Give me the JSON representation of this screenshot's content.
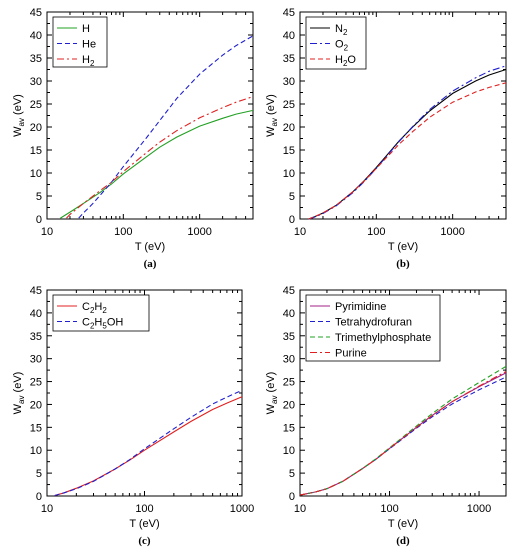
{
  "chart_data": [
    {
      "type": "line",
      "panel": "(a)",
      "xlabel": "T (eV)",
      "ylabel_main": "W",
      "ylabel_sub": "av",
      "ylabel_unit": " (eV)",
      "xscale": "log",
      "xlim": [
        10,
        5000
      ],
      "ylim": [
        0,
        45
      ],
      "xticks": [
        10,
        100,
        1000
      ],
      "yticks": [
        0,
        5,
        10,
        15,
        20,
        25,
        30,
        35,
        40,
        45
      ],
      "grid": false,
      "legend": "top-left",
      "series": [
        {
          "name_parts": [
            [
              "H",
              ""
            ]
          ],
          "color": "#22a022",
          "dash": "solid",
          "x": [
            15,
            20,
            30,
            50,
            70,
            100,
            200,
            300,
            500,
            1000,
            2000,
            3000,
            5000
          ],
          "y": [
            0.2,
            1.5,
            3.4,
            5.8,
            7.6,
            9.8,
            13.5,
            15.6,
            17.8,
            20.2,
            21.9,
            22.8,
            23.6
          ]
        },
        {
          "name_parts": [
            [
              "He",
              ""
            ]
          ],
          "color": "#2020d0",
          "dash": "dash",
          "x": [
            26,
            30,
            40,
            50,
            70,
            100,
            200,
            300,
            500,
            1000,
            2000,
            3000,
            5000
          ],
          "y": [
            0.2,
            1.3,
            3.4,
            5.2,
            8.0,
            11.4,
            17.6,
            21.4,
            26.2,
            31.5,
            35.6,
            37.7,
            39.8
          ]
        },
        {
          "name_parts": [
            [
              "H",
              ""
            ],
            [
              "2",
              "sub"
            ]
          ],
          "color": "#e02020",
          "dash": "dashdot",
          "x": [
            18,
            20,
            30,
            50,
            70,
            100,
            200,
            300,
            500,
            1000,
            2000,
            3000,
            5000
          ],
          "y": [
            0.2,
            1.0,
            3.4,
            6.2,
            8.0,
            10.3,
            14.4,
            16.7,
            19.2,
            22.0,
            24.2,
            25.4,
            26.6
          ]
        }
      ]
    },
    {
      "type": "line",
      "panel": "(b)",
      "xlabel": "T (eV)",
      "ylabel_main": "W",
      "ylabel_sub": "av",
      "ylabel_unit": " (eV)",
      "xscale": "log",
      "xlim": [
        10,
        5000
      ],
      "ylim": [
        0,
        45
      ],
      "xticks": [
        10,
        100,
        1000
      ],
      "yticks": [
        0,
        5,
        10,
        15,
        20,
        25,
        30,
        35,
        40,
        45
      ],
      "grid": false,
      "legend": "top-left",
      "series": [
        {
          "name_parts": [
            [
              "N",
              ""
            ],
            [
              "2",
              "sub"
            ]
          ],
          "color": "#000000",
          "dash": "solid",
          "x": [
            13,
            15,
            20,
            30,
            50,
            70,
            100,
            200,
            300,
            500,
            1000,
            2000,
            3000,
            5000
          ],
          "y": [
            0,
            0.4,
            1.3,
            3.0,
            6.0,
            8.4,
            11.2,
            17.0,
            20.0,
            23.5,
            27.3,
            30.0,
            31.3,
            32.5
          ]
        },
        {
          "name_parts": [
            [
              "O",
              ""
            ],
            [
              "2",
              "sub"
            ]
          ],
          "color": "#2020d0",
          "dash": "dashdot",
          "x": [
            13,
            15,
            20,
            30,
            50,
            70,
            100,
            200,
            300,
            500,
            1000,
            2000,
            3000,
            5000
          ],
          "y": [
            0,
            0.3,
            1.2,
            2.9,
            5.8,
            8.2,
            11.0,
            16.9,
            20.1,
            23.8,
            27.8,
            30.7,
            32.1,
            33.3
          ]
        },
        {
          "name_parts": [
            [
              "H",
              ""
            ],
            [
              "2",
              "sub"
            ],
            [
              "O",
              ""
            ]
          ],
          "color": "#e02020",
          "dash": "dash",
          "x": [
            13,
            15,
            20,
            30,
            50,
            70,
            100,
            200,
            300,
            500,
            1000,
            2000,
            3000,
            5000
          ],
          "y": [
            0,
            0.4,
            1.3,
            3.0,
            6.0,
            8.3,
            11.0,
            16.3,
            19.0,
            22.1,
            25.4,
            27.6,
            28.6,
            29.6
          ]
        }
      ]
    },
    {
      "type": "line",
      "panel": "(c)",
      "xlabel": "T (eV)",
      "ylabel_main": "W",
      "ylabel_sub": "av",
      "ylabel_unit": " (eV)",
      "xscale": "log",
      "xlim": [
        10,
        1000
      ],
      "ylim": [
        0,
        45
      ],
      "xticks": [
        10,
        100,
        1000
      ],
      "yticks": [
        0,
        5,
        10,
        15,
        20,
        25,
        30,
        35,
        40,
        45
      ],
      "grid": false,
      "legend": "top-left",
      "series": [
        {
          "name_parts": [
            [
              "C",
              ""
            ],
            [
              "2",
              "sub"
            ],
            [
              "H",
              ""
            ],
            [
              "2",
              "sub"
            ]
          ],
          "color": "#e02020",
          "dash": "solid",
          "x": [
            12,
            15,
            20,
            30,
            50,
            70,
            100,
            200,
            300,
            500,
            700,
            1000
          ],
          "y": [
            0.1,
            0.7,
            1.7,
            3.3,
            5.9,
            7.8,
            10.0,
            14.0,
            16.3,
            18.9,
            20.3,
            21.7
          ]
        },
        {
          "name_parts": [
            [
              "C",
              ""
            ],
            [
              "2",
              "sub"
            ],
            [
              "H",
              ""
            ],
            [
              "5",
              "sub"
            ],
            [
              "OH",
              ""
            ]
          ],
          "color": "#2020d0",
          "dash": "dash",
          "x": [
            12,
            15,
            20,
            30,
            50,
            70,
            100,
            200,
            300,
            500,
            700,
            1000
          ],
          "y": [
            0.1,
            0.7,
            1.6,
            3.2,
            5.9,
            7.9,
            10.3,
            14.7,
            17.2,
            20.1,
            21.6,
            23.1
          ]
        }
      ]
    },
    {
      "type": "line",
      "panel": "(d)",
      "xlabel": "T (eV)",
      "ylabel_main": "W",
      "ylabel_sub": "av",
      "ylabel_unit": " (eV)",
      "xscale": "log",
      "xlim": [
        10,
        2000
      ],
      "ylim": [
        0,
        45
      ],
      "xticks": [
        10,
        100,
        1000
      ],
      "yticks": [
        0,
        5,
        10,
        15,
        20,
        25,
        30,
        35,
        40,
        45
      ],
      "grid": false,
      "legend": "top-left",
      "series": [
        {
          "name_parts": [
            [
              "Pyrimidine",
              ""
            ]
          ],
          "color": "#a0208a",
          "dash": "solid",
          "x": [
            10,
            15,
            20,
            30,
            50,
            70,
            100,
            200,
            300,
            500,
            1000,
            2000
          ],
          "y": [
            0.2,
            0.9,
            1.6,
            3.2,
            6.0,
            8.0,
            10.4,
            15.0,
            17.6,
            20.6,
            23.9,
            26.9
          ]
        },
        {
          "name_parts": [
            [
              "Tetrahydrofuran",
              ""
            ]
          ],
          "color": "#2020d0",
          "dash": "dash",
          "x": [
            10,
            15,
            20,
            30,
            50,
            70,
            100,
            200,
            300,
            500,
            1000,
            2000
          ],
          "y": [
            0.2,
            0.9,
            1.6,
            3.2,
            6.0,
            8.0,
            10.3,
            14.8,
            17.3,
            20.1,
            23.2,
            26.0
          ]
        },
        {
          "name_parts": [
            [
              "Trimethylphosphate",
              ""
            ]
          ],
          "color": "#20a020",
          "dash": "dash",
          "x": [
            10,
            15,
            20,
            30,
            50,
            70,
            100,
            200,
            300,
            500,
            1000,
            2000
          ],
          "y": [
            0.2,
            0.9,
            1.6,
            3.2,
            6.0,
            8.1,
            10.5,
            15.3,
            18.0,
            21.2,
            24.8,
            28.3
          ]
        },
        {
          "name_parts": [
            [
              "Purine",
              ""
            ]
          ],
          "color": "#e02020",
          "dash": "dashdot",
          "x": [
            10,
            15,
            20,
            30,
            50,
            70,
            100,
            200,
            300,
            500,
            1000,
            2000
          ],
          "y": [
            0.2,
            0.9,
            1.6,
            3.2,
            6.0,
            8.0,
            10.4,
            15.0,
            17.6,
            20.6,
            24.0,
            27.2
          ]
        }
      ]
    }
  ]
}
